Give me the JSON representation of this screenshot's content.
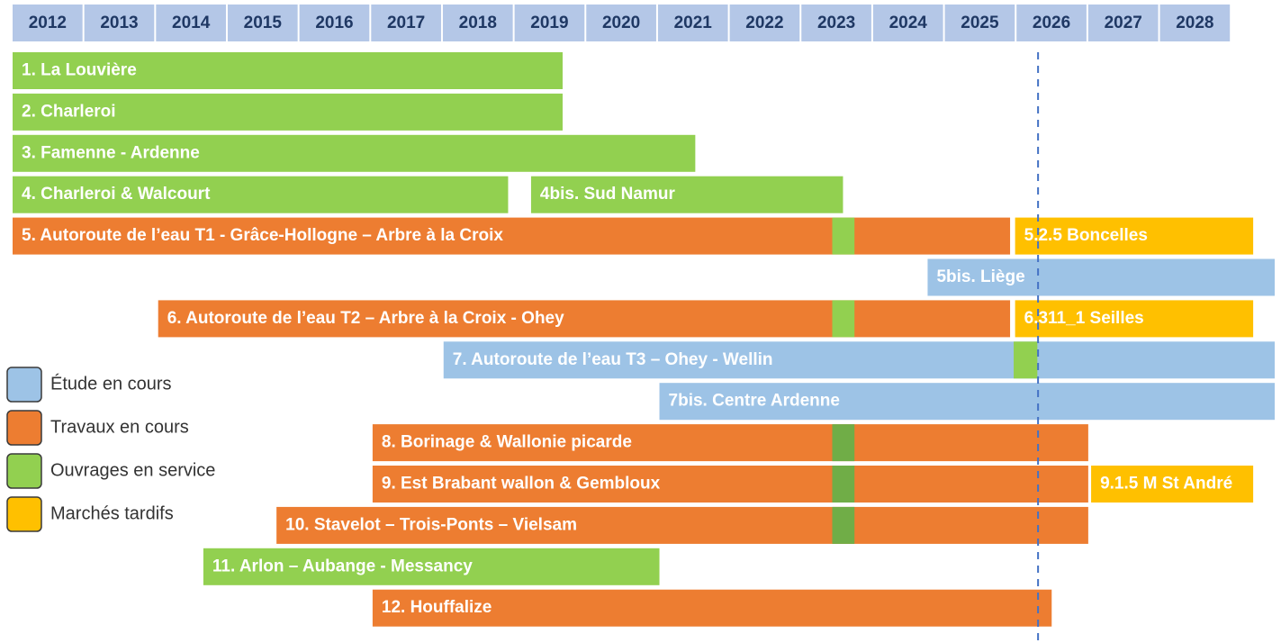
{
  "chart_data": {
    "type": "gantt",
    "xlim": [
      2012,
      2029.6
    ],
    "xticks": [
      2012,
      2013,
      2014,
      2015,
      2016,
      2017,
      2018,
      2019,
      2020,
      2021,
      2022,
      2023,
      2024,
      2025,
      2026,
      2027,
      2028
    ],
    "marker_x": 2026.3,
    "legend": [
      {
        "name": "Étude en cours",
        "color": "#9dc3e6"
      },
      {
        "name": "Travaux en cours",
        "color": "#ed7d31"
      },
      {
        "name": "Ouvrages en service",
        "color": "#92d050"
      },
      {
        "name": "Marchés tardifs",
        "color": "#ffc000"
      }
    ],
    "rows": [
      {
        "bars": [
          {
            "label": "1. La Louvière",
            "start": 2012,
            "end": 2019.67,
            "color": "#92d050"
          }
        ]
      },
      {
        "bars": [
          {
            "label": "2. Charleroi",
            "start": 2012,
            "end": 2019.67,
            "color": "#92d050"
          }
        ]
      },
      {
        "bars": [
          {
            "label": "3. Famenne - Ardenne",
            "start": 2012,
            "end": 2021.52,
            "color": "#92d050"
          }
        ]
      },
      {
        "bars": [
          {
            "label": "4. Charleroi & Walcourt",
            "start": 2012,
            "end": 2018.91,
            "color": "#92d050"
          },
          {
            "label": "4bis. Sud Namur",
            "start": 2019.23,
            "end": 2023.58,
            "color": "#92d050"
          }
        ]
      },
      {
        "bars": [
          {
            "label": "5. Autoroute de l’eau T1 - Grâce-Hollogne – Arbre à la Croix",
            "start": 2012,
            "end": 2025.91,
            "color": "#ed7d31"
          },
          {
            "start": 2023.43,
            "end": 2023.74,
            "color": "#92d050"
          },
          {
            "label": "5.2.5 Boncelles",
            "start": 2025.98,
            "end": 2029.3,
            "color": "#ffc000"
          }
        ]
      },
      {
        "bars": [
          {
            "label": "5bis. Liège",
            "start": 2024.76,
            "end": 2029.6,
            "color": "#9dc3e6"
          }
        ]
      },
      {
        "bars": [
          {
            "label": "6. Autoroute de l’eau T2 – Arbre à la Croix - Ohey",
            "start": 2014.03,
            "end": 2025.91,
            "color": "#ed7d31"
          },
          {
            "start": 2023.43,
            "end": 2023.74,
            "color": "#92d050"
          },
          {
            "label": "6.311_1 Seilles",
            "start": 2025.98,
            "end": 2029.3,
            "color": "#ffc000"
          }
        ]
      },
      {
        "bars": [
          {
            "label": "7. Autoroute de l’eau T3 – Ohey - Wellin",
            "start": 2018.01,
            "end": 2029.6,
            "color": "#9dc3e6"
          },
          {
            "start": 2025.96,
            "end": 2026.29,
            "color": "#92d050"
          }
        ]
      },
      {
        "bars": [
          {
            "label": "7bis. Centre Ardenne",
            "start": 2021.02,
            "end": 2029.6,
            "color": "#9dc3e6"
          }
        ]
      },
      {
        "bars": [
          {
            "label": "8. Borinage & Wallonie picarde",
            "start": 2017.02,
            "end": 2027.0,
            "color": "#ed7d31"
          },
          {
            "start": 2023.43,
            "end": 2023.74,
            "color": "#70ad47"
          }
        ]
      },
      {
        "bars": [
          {
            "label": "9. Est Brabant wallon & Gembloux",
            "start": 2017.02,
            "end": 2027.0,
            "color": "#ed7d31"
          },
          {
            "start": 2023.43,
            "end": 2023.74,
            "color": "#70ad47"
          },
          {
            "label": "9.1.5 M St André",
            "start": 2027.04,
            "end": 2029.3,
            "color": "#ffc000"
          }
        ]
      },
      {
        "bars": [
          {
            "label": "10. Stavelot – Trois-Ponts – Vielsam",
            "start": 2015.68,
            "end": 2027.0,
            "color": "#ed7d31"
          },
          {
            "start": 2023.43,
            "end": 2023.74,
            "color": "#70ad47"
          }
        ]
      },
      {
        "bars": [
          {
            "label": "11. Arlon – Aubange - Messancy",
            "start": 2014.66,
            "end": 2021.02,
            "color": "#92d050"
          }
        ]
      },
      {
        "bars": [
          {
            "label": "12. Houffalize",
            "start": 2017.02,
            "end": 2026.49,
            "color": "#ed7d31"
          }
        ]
      }
    ]
  }
}
